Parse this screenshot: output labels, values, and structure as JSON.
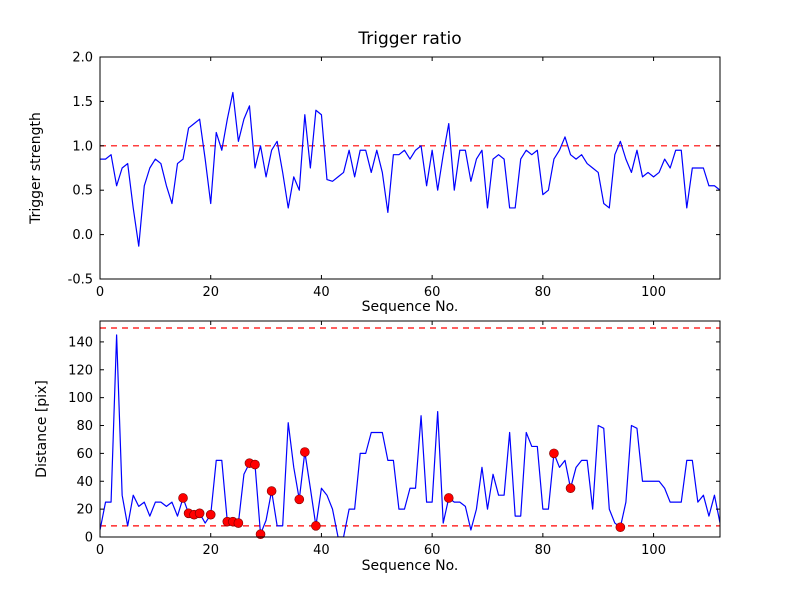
{
  "figure": {
    "background": "#ffffff",
    "spine_color": "#000000",
    "tick_label_color": "#000000"
  },
  "chart_data": {
    "note": "see charts array"
  },
  "charts": [
    {
      "type": "line",
      "title": "Trigger ratio",
      "xlabel": "Sequence No.",
      "ylabel": "Trigger strength",
      "xlim": [
        0,
        112
      ],
      "ylim": [
        -0.5,
        2.0
      ],
      "xticks": [
        0,
        20,
        40,
        60,
        80,
        100
      ],
      "xtick_labels": [
        "0",
        "20",
        "40",
        "60",
        "80",
        "100"
      ],
      "yticks": [
        -0.5,
        0.0,
        0.5,
        1.0,
        1.5,
        2.0
      ],
      "ytick_labels": [
        "-0.5",
        "0.0",
        "0.5",
        "1.0",
        "1.5",
        "2.0"
      ],
      "line_color": "#0000ff",
      "threshold_color": "#ff0000",
      "thresholds": [
        1.0
      ],
      "y_values": [
        0.85,
        0.85,
        0.9,
        0.55,
        0.75,
        0.8,
        0.3,
        -0.13,
        0.55,
        0.75,
        0.85,
        0.8,
        0.55,
        0.35,
        0.8,
        0.85,
        1.2,
        1.25,
        1.3,
        0.85,
        0.35,
        1.15,
        0.95,
        1.3,
        1.6,
        1.05,
        1.3,
        1.45,
        0.75,
        1.0,
        0.65,
        0.95,
        1.05,
        0.7,
        0.3,
        0.65,
        0.5,
        1.35,
        0.75,
        1.4,
        1.35,
        0.62,
        0.6,
        0.65,
        0.7,
        0.95,
        0.65,
        0.95,
        0.95,
        0.7,
        0.95,
        0.7,
        0.25,
        0.9,
        0.9,
        0.95,
        0.85,
        0.95,
        1.0,
        0.55,
        0.95,
        0.5,
        0.9,
        1.25,
        0.5,
        0.95,
        0.95,
        0.6,
        0.85,
        0.95,
        0.3,
        0.85,
        0.9,
        0.85,
        0.3,
        0.3,
        0.85,
        0.95,
        0.9,
        0.95,
        0.45,
        0.5,
        0.85,
        0.95,
        1.1,
        0.9,
        0.85,
        0.9,
        0.8,
        0.75,
        0.7,
        0.35,
        0.3,
        0.9,
        1.05,
        0.85,
        0.7,
        0.95,
        0.65,
        0.7,
        0.65,
        0.7,
        0.85,
        0.75,
        0.95,
        0.95,
        0.3,
        0.75,
        0.75,
        0.75,
        0.55,
        0.55,
        0.5
      ]
    },
    {
      "type": "line+scatter",
      "title": "",
      "xlabel": "Sequence No.",
      "ylabel": "Distance [pix]",
      "xlim": [
        0,
        112
      ],
      "ylim": [
        0,
        155
      ],
      "xticks": [
        0,
        20,
        40,
        60,
        80,
        100
      ],
      "xtick_labels": [
        "0",
        "20",
        "40",
        "60",
        "80",
        "100"
      ],
      "yticks": [
        0,
        20,
        40,
        60,
        80,
        100,
        120,
        140
      ],
      "ytick_labels": [
        "0",
        "20",
        "40",
        "60",
        "80",
        "100",
        "120",
        "140"
      ],
      "line_color": "#0000ff",
      "threshold_color": "#ff0000",
      "thresholds": [
        150,
        8
      ],
      "scatter_color": "#ff0000",
      "scatter_points": [
        [
          15,
          28
        ],
        [
          16,
          17
        ],
        [
          17,
          16
        ],
        [
          18,
          17
        ],
        [
          20,
          16
        ],
        [
          23,
          11
        ],
        [
          24,
          11
        ],
        [
          25,
          10
        ],
        [
          27,
          53
        ],
        [
          28,
          52
        ],
        [
          29,
          2
        ],
        [
          31,
          33
        ],
        [
          36,
          27
        ],
        [
          37,
          61
        ],
        [
          39,
          8
        ],
        [
          63,
          28
        ],
        [
          82,
          60
        ],
        [
          85,
          35
        ],
        [
          94,
          7
        ]
      ],
      "y_values": [
        5,
        25,
        25,
        145,
        30,
        8,
        30,
        22,
        25,
        15,
        25,
        25,
        22,
        25,
        15,
        28,
        17,
        16,
        17,
        10,
        16,
        55,
        55,
        11,
        11,
        10,
        45,
        53,
        52,
        2,
        12,
        33,
        8,
        8,
        82,
        50,
        27,
        61,
        35,
        8,
        35,
        30,
        20,
        0,
        0,
        20,
        20,
        60,
        60,
        75,
        75,
        75,
        55,
        55,
        20,
        20,
        35,
        35,
        87,
        25,
        25,
        90,
        10,
        28,
        25,
        25,
        22,
        5,
        20,
        50,
        20,
        45,
        30,
        30,
        75,
        15,
        15,
        75,
        65,
        65,
        20,
        20,
        60,
        50,
        55,
        35,
        50,
        55,
        55,
        20,
        80,
        78,
        20,
        10,
        7,
        25,
        80,
        78,
        40,
        40,
        40,
        40,
        35,
        25,
        25,
        25,
        55,
        55,
        25,
        30,
        15,
        30,
        10
      ]
    }
  ]
}
